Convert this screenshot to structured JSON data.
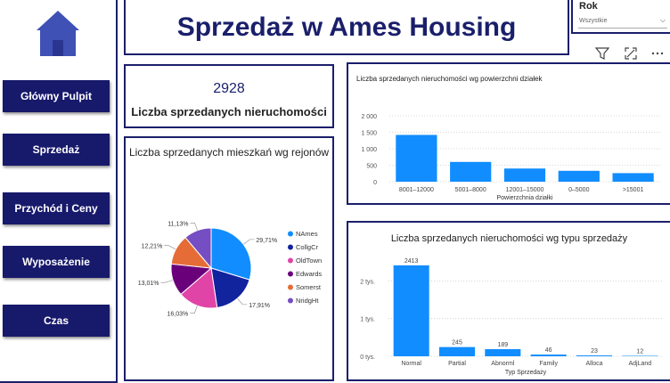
{
  "header": {
    "title": "Sprzedaż w Ames Housing"
  },
  "nav": [
    {
      "label": "Główny Pulpit"
    },
    {
      "label": "Sprzedaż"
    },
    {
      "label": "Przychód i Ceny"
    },
    {
      "label": "Wyposażenie"
    },
    {
      "label": "Czas"
    }
  ],
  "slicer": {
    "label": "Rok",
    "value": "Wszystkie"
  },
  "kpi": {
    "value": "2928",
    "label": "Liczba sprzedanych nieruchomości"
  },
  "colors": {
    "brand": "#1a1f6b",
    "bar": "#118dff"
  },
  "icons": {
    "filter": "filter-icon",
    "focus": "focus-mode-icon",
    "more": "more-options-icon"
  },
  "chart_data": [
    {
      "type": "bar",
      "title": "Liczba sprzedanych nieruchomości wg powierzchni działek",
      "xlabel": "Powierzchnia działki",
      "ylabel": "",
      "categories": [
        "8001–12000",
        "5001–8000",
        "12001–15000",
        "0–5000",
        ">15001"
      ],
      "values": [
        1420,
        600,
        400,
        330,
        260
      ],
      "ylim": [
        0,
        2000
      ],
      "yticks": [
        "0",
        "500",
        "1 000",
        "1 500",
        "2 000"
      ],
      "grid": true,
      "color": "#118dff"
    },
    {
      "type": "bar",
      "title": "Liczba sprzedanych nieruchomości wg typu sprzedaży",
      "xlabel": "Typ Sprzedaży",
      "ylabel": "",
      "categories": [
        "Normal",
        "Partial",
        "Abnorml",
        "Family",
        "Alloca",
        "AdjLand"
      ],
      "values": [
        2413,
        245,
        189,
        46,
        23,
        12
      ],
      "data_labels": [
        "2413",
        "245",
        "189",
        "46",
        "23",
        "12"
      ],
      "ylim": [
        0,
        2600
      ],
      "yticks": [
        "0 tys.",
        "1 tys.",
        "2 tys."
      ],
      "grid": true,
      "color": "#118dff"
    },
    {
      "type": "pie",
      "title": "Liczba sprzedanych mieszkań wg rejonów",
      "categories": [
        "NAmes",
        "CollgCr",
        "OldTown",
        "Edwards",
        "Somerst",
        "NridgHt"
      ],
      "values": [
        29.71,
        17.91,
        16.03,
        13.01,
        12.21,
        11.13
      ],
      "labels": [
        "29,71%",
        "17,91%",
        "16,03%",
        "13,01%",
        "12,21%",
        "11,13%"
      ],
      "colors": [
        "#118dff",
        "#12239e",
        "#e044a7",
        "#6b007b",
        "#e66c37",
        "#744ec2"
      ],
      "legend": "right"
    }
  ]
}
